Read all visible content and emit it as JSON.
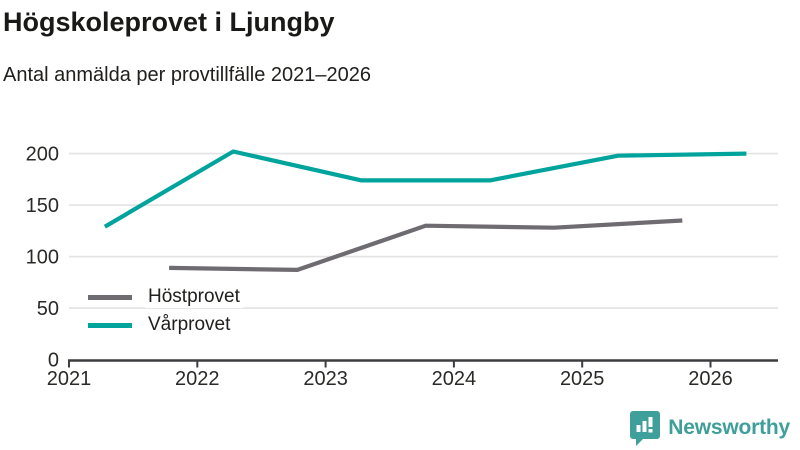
{
  "header": {
    "title": "Högskoleprovet i Ljungby",
    "subtitle": "Antal anmälda per provtillfälle 2021–2026"
  },
  "chart_data": {
    "type": "line",
    "title": "Högskoleprovet i Ljungby",
    "subtitle": "Antal anmälda per provtillfälle 2021–2026",
    "xlabel": "",
    "ylabel": "",
    "xlim": [
      2021,
      2026.55
    ],
    "ylim": [
      0,
      210
    ],
    "xticks": [
      "2021",
      "2022",
      "2023",
      "2024",
      "2025",
      "2026"
    ],
    "xtick_years": [
      2021,
      2022,
      2023,
      2024,
      2025,
      2026
    ],
    "yticks": [
      0,
      50,
      100,
      150,
      200
    ],
    "grid": "horizontal",
    "legend_position": "inside-bottom-left",
    "series": [
      {
        "name": "Höstprovet",
        "color": "#6f6c71",
        "x": [
          2021.78,
          2022.78,
          2023.78,
          2024.78,
          2025.78
        ],
        "values": [
          89,
          87,
          130,
          128,
          135
        ]
      },
      {
        "name": "Vårprovet",
        "color": "#00a49c",
        "x": [
          2021.28,
          2022.28,
          2023.28,
          2024.28,
          2025.28,
          2026.28
        ],
        "values": [
          129,
          202,
          174,
          174,
          198,
          200
        ]
      }
    ]
  },
  "branding": {
    "logo_text": "Newsworthy",
    "logo_color": "#3f9f9a",
    "logo_icon": "bar-chart-speech-bubble-icon"
  },
  "style_colors": {
    "axis": "#3d3c3e",
    "grid": "#e3e3e3",
    "tick_label": "#2b2a28"
  }
}
